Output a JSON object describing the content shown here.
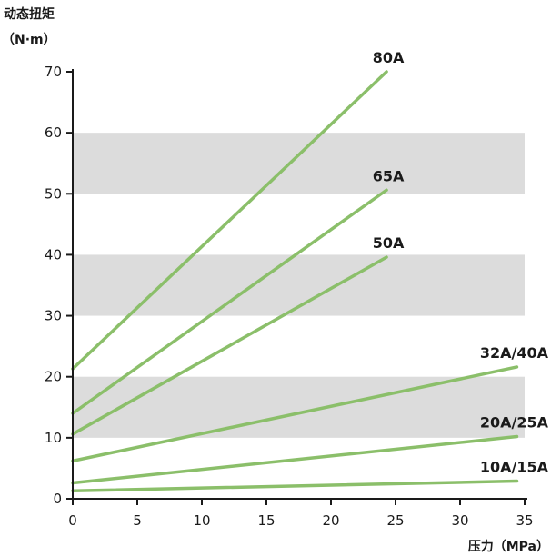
{
  "chart_data": {
    "type": "line",
    "ylabel_line1": "动态扭矩",
    "ylabel_line2": "（N·m）",
    "xlabel": "压力（MPa）",
    "xlim": [
      0,
      35
    ],
    "ylim": [
      0,
      70
    ],
    "x_ticks": [
      0,
      5,
      10,
      15,
      20,
      25,
      30,
      35
    ],
    "y_ticks": [
      0,
      10,
      20,
      30,
      40,
      50,
      60,
      70
    ],
    "bands": [
      [
        10,
        20
      ],
      [
        30,
        40
      ],
      [
        50,
        60
      ]
    ],
    "line_color": "#8bbf6a",
    "band_color": "#dcdcdc",
    "series": [
      {
        "name": "80A",
        "points": [
          [
            0,
            21.3
          ],
          [
            24.3,
            70
          ]
        ]
      },
      {
        "name": "65A",
        "points": [
          [
            0,
            14.0
          ],
          [
            24.3,
            50.6
          ]
        ]
      },
      {
        "name": "50A",
        "points": [
          [
            0,
            10.6
          ],
          [
            24.3,
            39.6
          ]
        ]
      },
      {
        "name": "32A/40A",
        "points": [
          [
            0,
            6.2
          ],
          [
            34.4,
            21.6
          ]
        ]
      },
      {
        "name": "20A/25A",
        "points": [
          [
            0,
            2.6
          ],
          [
            34.4,
            10.2
          ]
        ]
      },
      {
        "name": "10A/15A",
        "points": [
          [
            0,
            1.3
          ],
          [
            34.4,
            2.9
          ]
        ]
      }
    ]
  }
}
